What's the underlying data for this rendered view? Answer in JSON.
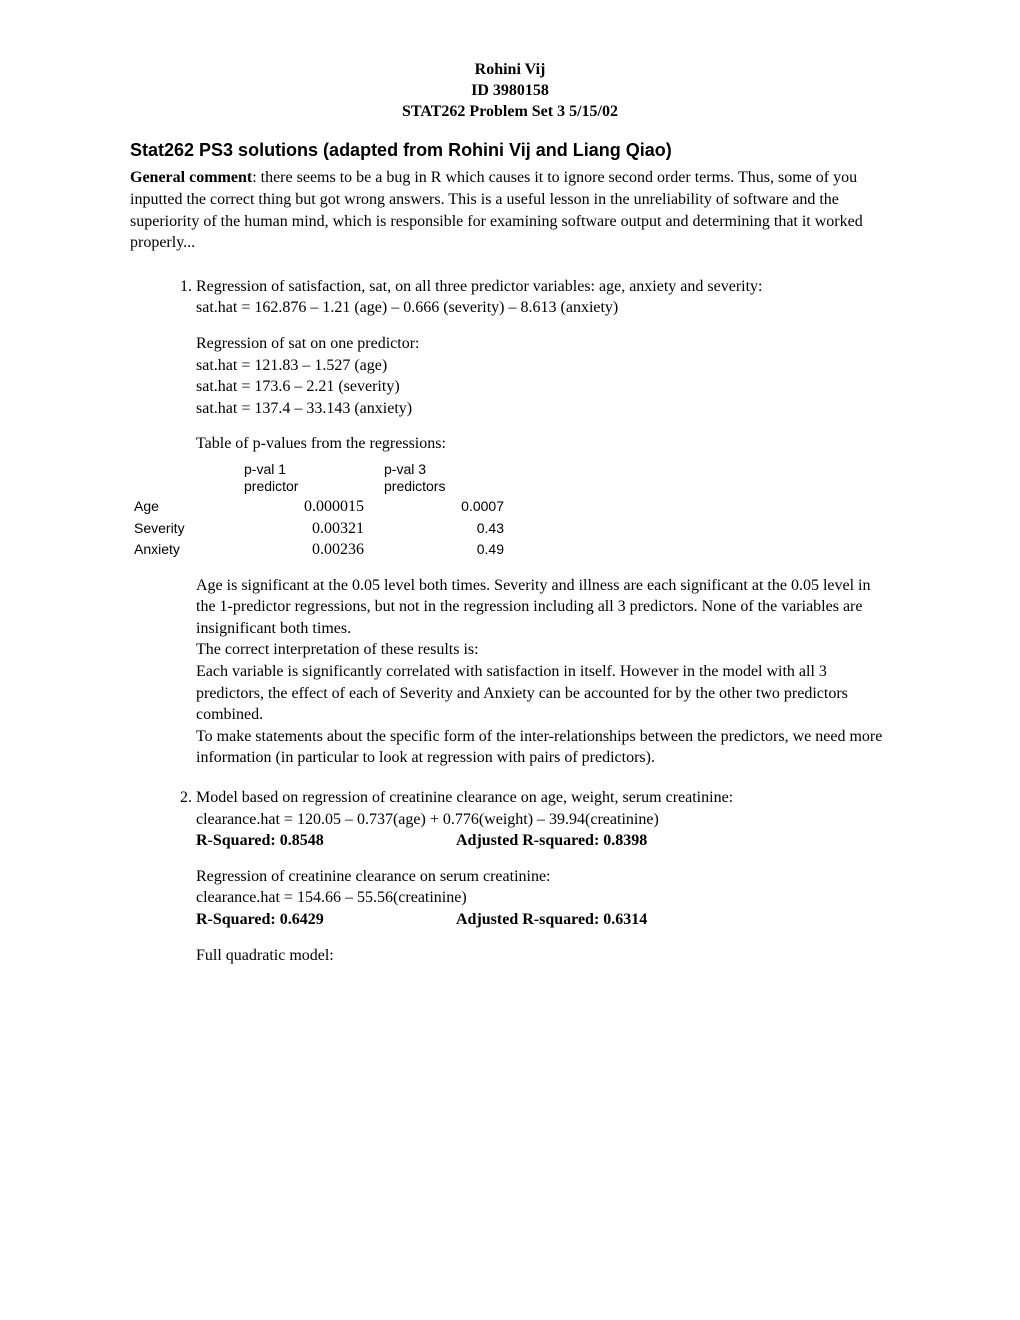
{
  "header": {
    "name": "Rohini Vij",
    "id": "ID 3980158",
    "course": "STAT262 Problem Set 3 5/15/02"
  },
  "title": "Stat262 PS3 solutions (adapted from  Rohini Vij and Liang Qiao)",
  "general": {
    "label": "General comment",
    "text": ": there seems to be a bug in R which causes it to ignore second order terms. Thus, some of you inputted the correct thing but got wrong answers. This is a useful lesson in the unreliability of software and the superiority of the human mind, which is responsible for examining software output and determining that it worked properly..."
  },
  "q1": {
    "intro": "Regression of satisfaction, sat, on all three predictor variables: age, anxiety and severity:",
    "eq_full": "sat.hat =  162.876 – 1.21 (age) – 0.666 (severity) – 8.613 (anxiety)",
    "single_intro": "Regression of sat on one predictor:",
    "eq_age": "sat.hat = 121.83 – 1.527 (age)",
    "eq_sev": "sat.hat = 173.6 – 2.21 (severity)",
    "eq_anx": "sat.hat = 137.4 – 33.143 (anxiety)",
    "table_caption": "Table of p-values from the regressions:",
    "table": {
      "head1a": "p-val 1",
      "head1b": "predictor",
      "head2a": "p-val 3",
      "head2b": "predictors",
      "rows": [
        {
          "label": "Age",
          "v1": "0.000015",
          "v2": "0.0007"
        },
        {
          "label": "Severity",
          "v1": "0.00321",
          "v2": "0.43"
        },
        {
          "label": "Anxiety",
          "v1": "0.00236",
          "v2": "0.49"
        }
      ]
    },
    "discussion1": "Age is significant at the 0.05 level both times. Severity and illness are each significant at the 0.05 level in the 1-predictor regressions, but not in the regression including all 3 predictors. None of the variables are insignificant both times.",
    "discussion2": "The correct interpretation of these results is:",
    "discussion3": "Each variable is significantly correlated with satisfaction in itself. However in the model with all 3 predictors, the effect of each of Severity and Anxiety can be accounted for by the other two predictors combined.",
    "discussion4": "To make statements about the specific form of the inter-relationships between the predictors, we need more information (in particular to look at regression with pairs of predictors)."
  },
  "q2": {
    "intro": "Model based on regression of creatinine clearance on age, weight, serum creatinine:",
    "eq1": "clearance.hat = 120.05 – 0.737(age) + 0.776(weight) – 39.94(creatinine)",
    "r1a": "R-Squared: 0.8548",
    "r1b": "Adjusted R-squared: 0.8398",
    "intro2": "Regression of creatinine clearance on serum creatinine:",
    "eq2": "clearance.hat = 154.66 – 55.56(creatinine)",
    "r2a": "R-Squared: 0.6429",
    "r2b": "Adjusted R-squared: 0.6314",
    "quad": "Full quadratic model:"
  }
}
